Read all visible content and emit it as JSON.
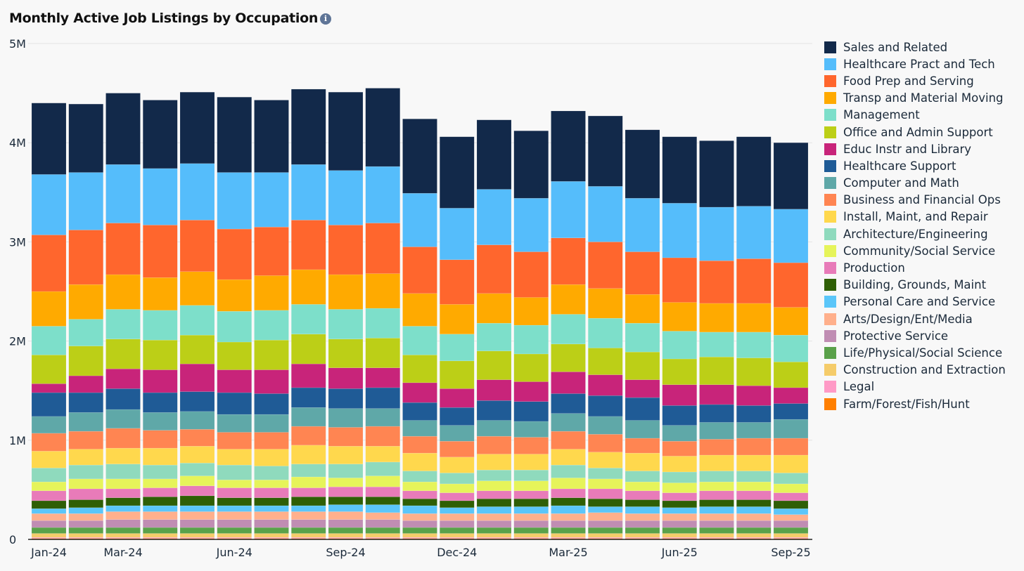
{
  "chart_data": {
    "type": "bar",
    "stacked": true,
    "title": "Monthly Active Job Listings by Occupation",
    "xlabel": "",
    "ylabel": "",
    "ylim": [
      0,
      5000000
    ],
    "y_ticks": [
      "0",
      "1M",
      "2M",
      "3M",
      "4M",
      "5M"
    ],
    "y_tick_values": [
      0,
      1000000,
      2000000,
      3000000,
      4000000,
      5000000
    ],
    "grid": true,
    "legend_position": "right",
    "units": "millions",
    "categories": [
      "Jan-24",
      "Feb-24",
      "Mar-24",
      "Apr-24",
      "May-24",
      "Jun-24",
      "Jul-24",
      "Aug-24",
      "Sep-24",
      "Oct-24",
      "Nov-24",
      "Dec-24",
      "Jan-25",
      "Feb-25",
      "Mar-25",
      "Apr-25",
      "May-25",
      "Jun-25",
      "Jul-25",
      "Aug-25",
      "Sep-25"
    ],
    "x_tick_labels": [
      "Jan-24",
      "Mar-24",
      "Jun-24",
      "Sep-24",
      "Dec-24",
      "Mar-25",
      "Jun-25",
      "Sep-25"
    ],
    "x_tick_indices": [
      0,
      2,
      5,
      8,
      11,
      14,
      17,
      20
    ],
    "series": [
      {
        "name": "Sales and Related",
        "color": "#12294a",
        "values": [
          0.72,
          0.69,
          0.72,
          0.69,
          0.72,
          0.76,
          0.73,
          0.76,
          0.79,
          0.79,
          0.75,
          0.72,
          0.7,
          0.68,
          0.71,
          0.71,
          0.69,
          0.67,
          0.67,
          0.7,
          0.67
        ]
      },
      {
        "name": "Healthcare Pract and Tech",
        "color": "#55bdfb",
        "values": [
          0.61,
          0.58,
          0.59,
          0.57,
          0.57,
          0.57,
          0.55,
          0.56,
          0.55,
          0.57,
          0.54,
          0.52,
          0.56,
          0.54,
          0.57,
          0.56,
          0.54,
          0.55,
          0.54,
          0.53,
          0.54
        ]
      },
      {
        "name": "Food Prep and Serving",
        "color": "#ff662d",
        "values": [
          0.57,
          0.55,
          0.52,
          0.53,
          0.52,
          0.51,
          0.49,
          0.5,
          0.5,
          0.51,
          0.47,
          0.45,
          0.49,
          0.46,
          0.47,
          0.47,
          0.43,
          0.45,
          0.43,
          0.45,
          0.45
        ]
      },
      {
        "name": "Transp and Material Moving",
        "color": "#ffaa00",
        "values": [
          0.35,
          0.35,
          0.35,
          0.33,
          0.34,
          0.32,
          0.35,
          0.35,
          0.35,
          0.35,
          0.33,
          0.3,
          0.3,
          0.28,
          0.3,
          0.3,
          0.29,
          0.29,
          0.29,
          0.29,
          0.28
        ]
      },
      {
        "name": "Management",
        "color": "#7ddfca",
        "values": [
          0.29,
          0.27,
          0.3,
          0.3,
          0.3,
          0.31,
          0.3,
          0.3,
          0.3,
          0.3,
          0.29,
          0.27,
          0.28,
          0.29,
          0.3,
          0.3,
          0.29,
          0.28,
          0.25,
          0.26,
          0.27
        ]
      },
      {
        "name": "Office and Admin Support",
        "color": "#bccf17",
        "values": [
          0.29,
          0.3,
          0.3,
          0.3,
          0.29,
          0.28,
          0.3,
          0.3,
          0.29,
          0.3,
          0.28,
          0.28,
          0.29,
          0.28,
          0.28,
          0.27,
          0.28,
          0.26,
          0.28,
          0.28,
          0.26
        ]
      },
      {
        "name": "Educ Instr and Library",
        "color": "#c8247a",
        "values": [
          0.09,
          0.17,
          0.2,
          0.23,
          0.28,
          0.23,
          0.24,
          0.24,
          0.21,
          0.2,
          0.2,
          0.19,
          0.21,
          0.2,
          0.22,
          0.21,
          0.18,
          0.21,
          0.2,
          0.2,
          0.16
        ]
      },
      {
        "name": "Healthcare Support",
        "color": "#1f5b96",
        "values": [
          0.24,
          0.2,
          0.21,
          0.2,
          0.2,
          0.22,
          0.21,
          0.2,
          0.2,
          0.21,
          0.18,
          0.18,
          0.2,
          0.2,
          0.2,
          0.21,
          0.23,
          0.2,
          0.18,
          0.17,
          0.16
        ]
      },
      {
        "name": "Computer and Math",
        "color": "#5fa8a8",
        "values": [
          0.17,
          0.19,
          0.19,
          0.18,
          0.18,
          0.18,
          0.18,
          0.19,
          0.19,
          0.18,
          0.16,
          0.16,
          0.16,
          0.16,
          0.18,
          0.18,
          0.18,
          0.16,
          0.17,
          0.16,
          0.19
        ]
      },
      {
        "name": "Business and Financial Ops",
        "color": "#ff8552",
        "values": [
          0.18,
          0.18,
          0.2,
          0.18,
          0.17,
          0.17,
          0.17,
          0.19,
          0.19,
          0.2,
          0.17,
          0.16,
          0.18,
          0.17,
          0.18,
          0.18,
          0.15,
          0.15,
          0.16,
          0.17,
          0.17
        ]
      },
      {
        "name": "Install, Maint, and Repair",
        "color": "#ffd84d",
        "values": [
          0.17,
          0.16,
          0.16,
          0.17,
          0.17,
          0.16,
          0.17,
          0.19,
          0.18,
          0.16,
          0.18,
          0.16,
          0.16,
          0.16,
          0.16,
          0.16,
          0.18,
          0.16,
          0.16,
          0.16,
          0.18
        ]
      },
      {
        "name": "Architecture/Engineering",
        "color": "#8fdabd",
        "values": [
          0.14,
          0.14,
          0.15,
          0.14,
          0.13,
          0.15,
          0.14,
          0.13,
          0.14,
          0.14,
          0.11,
          0.11,
          0.11,
          0.11,
          0.13,
          0.11,
          0.11,
          0.11,
          0.11,
          0.11,
          0.11
        ]
      },
      {
        "name": "Community/Social Service",
        "color": "#e6f45a",
        "values": [
          0.09,
          0.1,
          0.1,
          0.09,
          0.1,
          0.08,
          0.08,
          0.11,
          0.09,
          0.11,
          0.09,
          0.09,
          0.1,
          0.1,
          0.11,
          0.1,
          0.09,
          0.1,
          0.09,
          0.09,
          0.09
        ]
      },
      {
        "name": "Production",
        "color": "#e87bb9",
        "values": [
          0.1,
          0.11,
          0.09,
          0.09,
          0.1,
          0.1,
          0.1,
          0.09,
          0.1,
          0.1,
          0.08,
          0.08,
          0.08,
          0.08,
          0.09,
          0.1,
          0.09,
          0.08,
          0.09,
          0.09,
          0.08
        ]
      },
      {
        "name": "Building, Grounds, Maint",
        "color": "#2f5f05",
        "values": [
          0.08,
          0.08,
          0.08,
          0.09,
          0.1,
          0.08,
          0.08,
          0.09,
          0.08,
          0.08,
          0.07,
          0.07,
          0.08,
          0.08,
          0.08,
          0.08,
          0.07,
          0.07,
          0.07,
          0.07,
          0.08
        ]
      },
      {
        "name": "Personal Care and Service",
        "color": "#5bc6f9",
        "values": [
          0.05,
          0.06,
          0.06,
          0.06,
          0.06,
          0.06,
          0.06,
          0.06,
          0.07,
          0.08,
          0.08,
          0.06,
          0.07,
          0.07,
          0.08,
          0.06,
          0.07,
          0.06,
          0.07,
          0.07,
          0.06
        ]
      },
      {
        "name": "Arts/Design/Ent/Media",
        "color": "#ffb08c",
        "values": [
          0.07,
          0.07,
          0.08,
          0.08,
          0.08,
          0.08,
          0.08,
          0.08,
          0.08,
          0.07,
          0.07,
          0.07,
          0.07,
          0.07,
          0.07,
          0.08,
          0.07,
          0.07,
          0.07,
          0.07,
          0.06
        ]
      },
      {
        "name": "Protective Service",
        "color": "#c08db3",
        "values": [
          0.07,
          0.07,
          0.08,
          0.08,
          0.08,
          0.08,
          0.08,
          0.08,
          0.08,
          0.08,
          0.07,
          0.07,
          0.07,
          0.07,
          0.07,
          0.07,
          0.07,
          0.07,
          0.07,
          0.07,
          0.07
        ]
      },
      {
        "name": "Life/Physical/Social Science",
        "color": "#5aa14a",
        "values": [
          0.06,
          0.06,
          0.06,
          0.06,
          0.06,
          0.06,
          0.06,
          0.06,
          0.06,
          0.06,
          0.06,
          0.06,
          0.06,
          0.06,
          0.06,
          0.06,
          0.06,
          0.06,
          0.06,
          0.06,
          0.06
        ]
      },
      {
        "name": "Construction and Extraction",
        "color": "#f5cc6a",
        "values": [
          0.04,
          0.04,
          0.04,
          0.04,
          0.04,
          0.04,
          0.04,
          0.04,
          0.04,
          0.04,
          0.04,
          0.04,
          0.04,
          0.04,
          0.04,
          0.04,
          0.04,
          0.04,
          0.04,
          0.04,
          0.04
        ]
      },
      {
        "name": "Legal",
        "color": "#ff9ac6",
        "values": [
          0.01,
          0.01,
          0.01,
          0.01,
          0.01,
          0.01,
          0.01,
          0.01,
          0.01,
          0.01,
          0.01,
          0.01,
          0.01,
          0.01,
          0.01,
          0.01,
          0.01,
          0.01,
          0.01,
          0.01,
          0.01
        ]
      },
      {
        "name": "Farm/Forest/Fish/Hunt",
        "color": "#ff7f00",
        "values": [
          0.01,
          0.01,
          0.01,
          0.01,
          0.01,
          0.01,
          0.01,
          0.01,
          0.01,
          0.01,
          0.01,
          0.01,
          0.01,
          0.01,
          0.01,
          0.01,
          0.01,
          0.01,
          0.01,
          0.01,
          0.01
        ]
      }
    ]
  },
  "info_icon": "i"
}
